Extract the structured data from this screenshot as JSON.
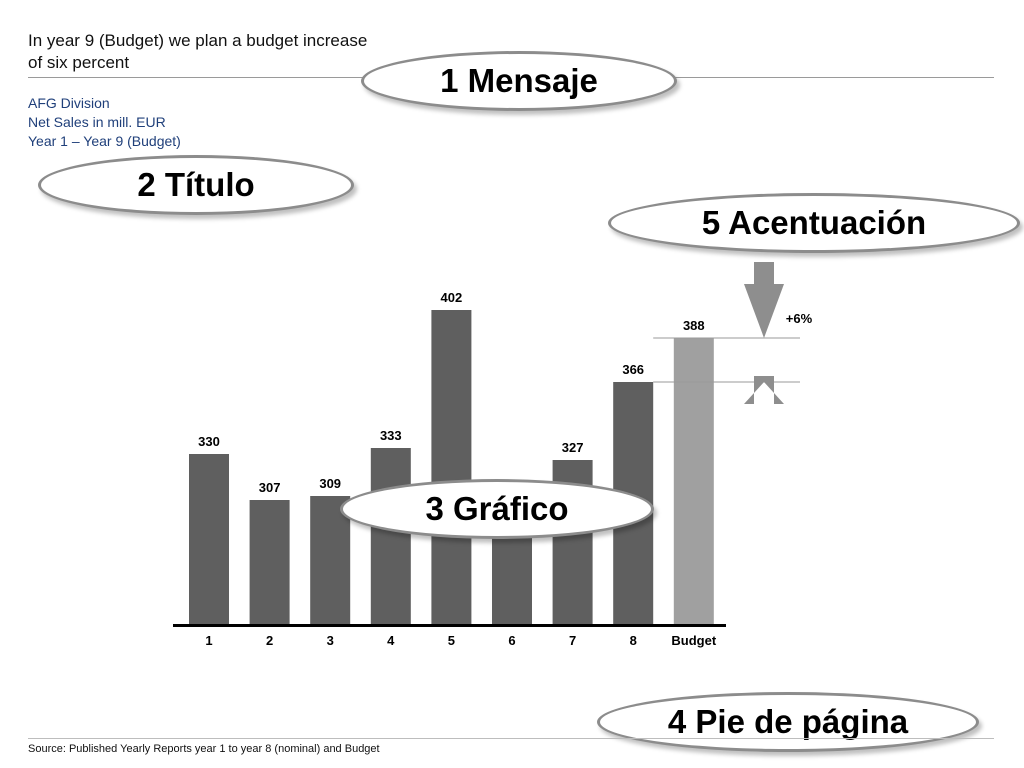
{
  "message": {
    "line1": "In year 9 (Budget) we plan a budget increase",
    "line2": "of six percent"
  },
  "title_block": {
    "line1": "AFG Division",
    "line2": "Net Sales in mill. EUR",
    "line3": "Year 1 – Year 9 (Budget)"
  },
  "callouts": {
    "mensaje": "1 Mensaje",
    "titulo": "2 Título",
    "grafico": "3 Gráfico",
    "pie": "4 Pie de página",
    "acentuacion": "5 Acentuación"
  },
  "footer": {
    "source": "Source: Published Yearly Reports year 1 to year 8 (nominal) and Budget"
  },
  "colors": {
    "bar": "#5f5f5f",
    "budget_bar": "#a0a0a0",
    "arrow": "#8e8e8e",
    "title_text": "#1f3f7a"
  },
  "chart_data": {
    "type": "bar",
    "title": "",
    "xlabel": "",
    "ylabel": "",
    "categories": [
      "1",
      "2",
      "3",
      "4",
      "5",
      "6",
      "7",
      "8",
      "Budget"
    ],
    "values": [
      330,
      307,
      309,
      333,
      402,
      305,
      327,
      366,
      388
    ],
    "highlight": "Budget",
    "annotation": {
      "text": "+6%",
      "from": 366,
      "to": 388
    },
    "grid": false,
    "y_axis_visible": false
  }
}
